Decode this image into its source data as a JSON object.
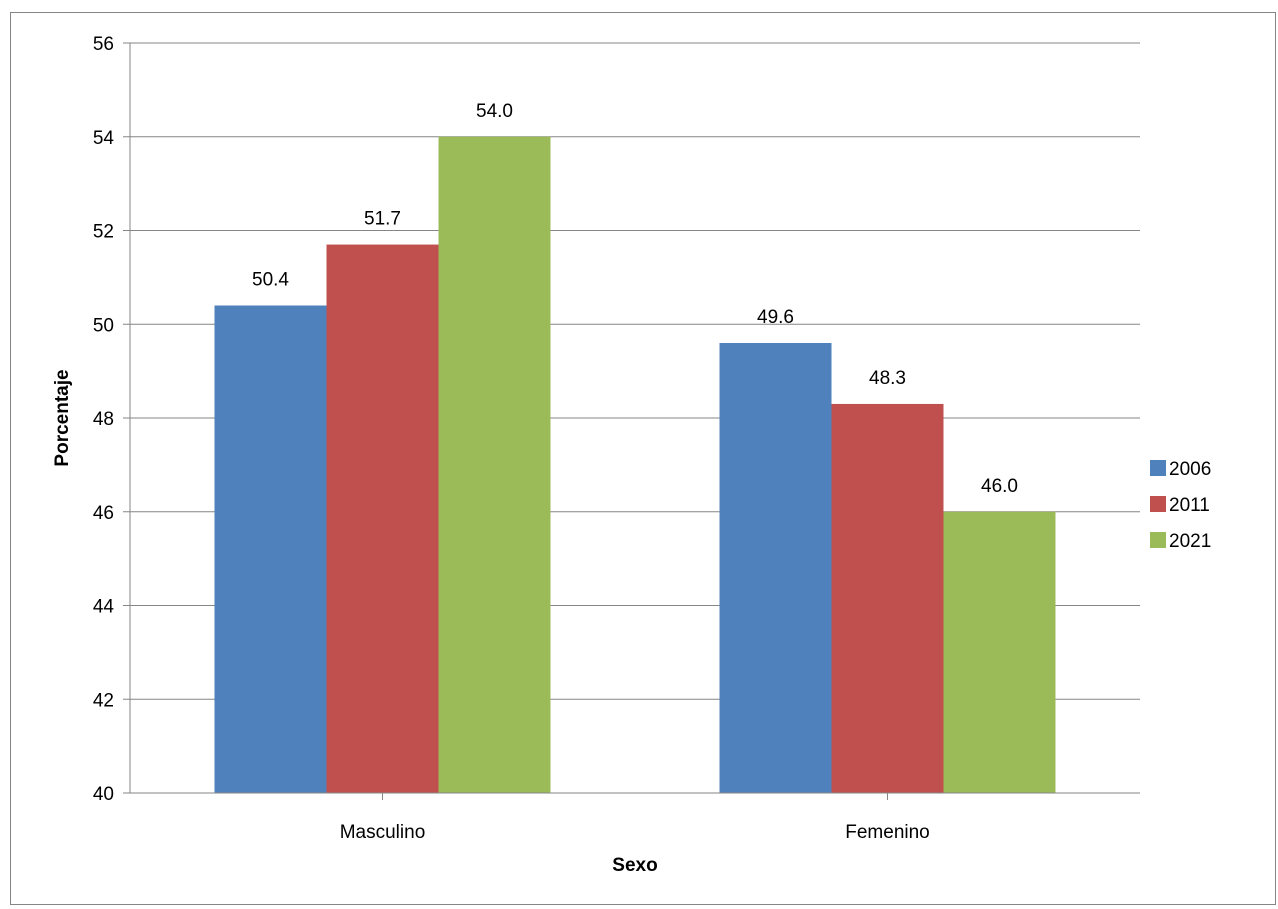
{
  "chart_data": {
    "type": "bar",
    "categories": [
      "Masculino",
      "Femenino"
    ],
    "series": [
      {
        "name": "2006",
        "values": [
          50.4,
          49.6
        ],
        "labels": [
          "50.4",
          "49.6"
        ]
      },
      {
        "name": "2011",
        "values": [
          51.7,
          48.3
        ],
        "labels": [
          "51.7",
          "48.3"
        ]
      },
      {
        "name": "2021",
        "values": [
          54.0,
          46.0
        ],
        "labels": [
          "54.0",
          "46.0"
        ]
      }
    ],
    "xlabel": "Sexo",
    "ylabel": "Porcentaje",
    "ylim": [
      40,
      56
    ],
    "yticks": [
      "40",
      "42",
      "44",
      "46",
      "48",
      "50",
      "52",
      "54",
      "56"
    ],
    "grid": true,
    "legend": "right",
    "colors": [
      "#4f81bd",
      "#c0504d",
      "#9bbb59"
    ]
  }
}
